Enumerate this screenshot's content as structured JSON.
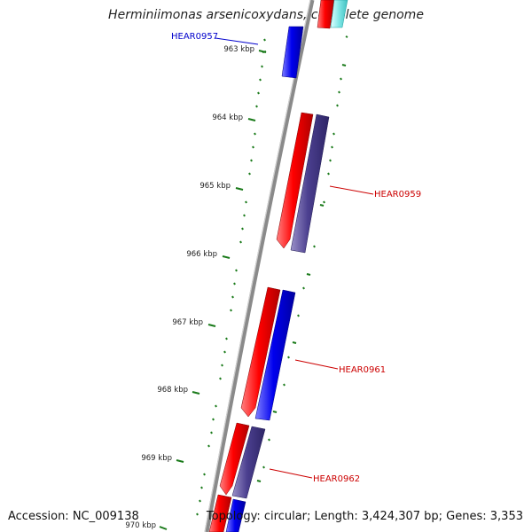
{
  "title": "Herminiimonas arsenicoxydans, complete genome",
  "accession": "Accession: NC_009138",
  "topology": "Topology: circular; Length: 3,424,307 bp; Genes: 3,353",
  "colors": {
    "backbone": "#8a8a8a",
    "tick": "#1a7a1a",
    "red": "#ff0000",
    "blue": "#0000ee",
    "slate": "#4b3f8f",
    "cyan": "#7fe6e6",
    "label_blue": "#0000cc",
    "label_red": "#cc0000"
  },
  "scale_ticks": [
    {
      "label": "963 kbp"
    },
    {
      "label": "964 kbp"
    },
    {
      "label": "965 kbp"
    },
    {
      "label": "966 kbp"
    },
    {
      "label": "967 kbp"
    },
    {
      "label": "968 kbp"
    },
    {
      "label": "969 kbp"
    },
    {
      "label": "970 kbp"
    }
  ],
  "gene_labels": [
    {
      "name": "HEAR0957",
      "color": "blue"
    },
    {
      "name": "HEAR0959",
      "color": "red"
    },
    {
      "name": "HEAR0961",
      "color": "red"
    },
    {
      "name": "HEAR0962",
      "color": "red"
    }
  ]
}
